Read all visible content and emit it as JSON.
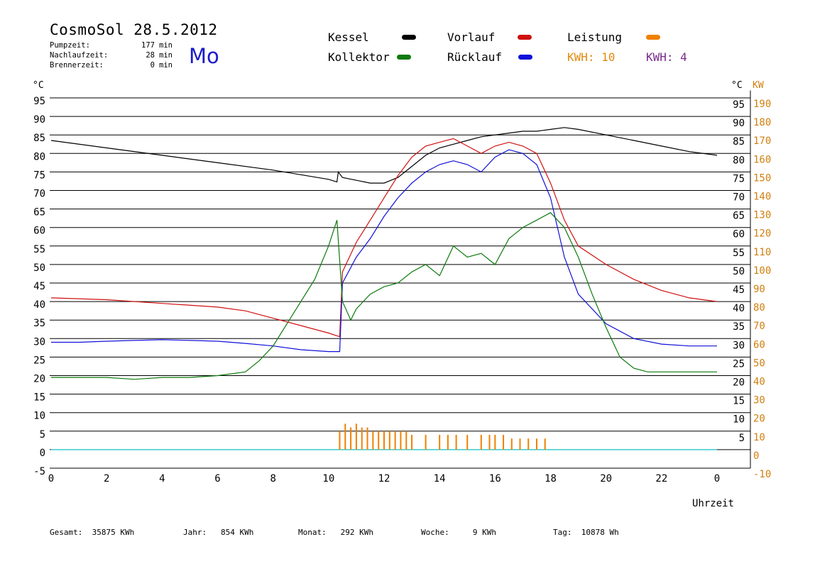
{
  "header": {
    "title": "CosmoSol 28.5.2012",
    "weekday": "Mo",
    "stats": [
      {
        "label": "Pumpzeit:",
        "value": "177",
        "unit": "min"
      },
      {
        "label": "Nachlaufzeit:",
        "value": "28",
        "unit": "min"
      },
      {
        "label": "Brennerzeit:",
        "value": "0",
        "unit": "min"
      }
    ]
  },
  "legend": {
    "kessel": "Kessel",
    "kollektor": "Kollektor",
    "vorlauf": "Vorlauf",
    "ruecklauf": "Rücklauf",
    "leistung": "Leistung",
    "kwh_left": "KWH: 10",
    "kwh_right": "KWH: 4"
  },
  "colors": {
    "kessel": "#000000",
    "kollektor": "#0d7a0d",
    "vorlauf": "#d01010",
    "ruecklauf": "#1010d8",
    "leistung": "#f08000",
    "kwh_left": "#e08a10",
    "kwh_right": "#7a2a8a",
    "baseline": "#40d0d0",
    "kw_axis": "#d08010"
  },
  "footer": {
    "gesamt": "Gesamt:  35875 KWh",
    "jahr": "Jahr:   854 KWh",
    "monat": "Monat:   292 KWh",
    "woche": "Woche:     9 KWh",
    "tag": "Tag:  10878 Wh"
  },
  "chart_data": {
    "type": "line",
    "title": "CosmoSol 28.5.2012",
    "xlabel": "Uhrzeit",
    "ylabel_left": "°C",
    "ylabel_right_1": "°C",
    "ylabel_right_2": "KW",
    "xlim": [
      0,
      24
    ],
    "ylim": [
      -5,
      97
    ],
    "grid": true,
    "x_ticks": [
      "0",
      "2",
      "4",
      "6",
      "8",
      "10",
      "12",
      "14",
      "16",
      "18",
      "20",
      "22",
      "0"
    ],
    "y_ticks_left": [
      "95",
      "90",
      "85",
      "80",
      "75",
      "70",
      "65",
      "60",
      "55",
      "50",
      "45",
      "40",
      "35",
      "30",
      "25",
      "20",
      "15",
      "10",
      "5",
      "0",
      "-5"
    ],
    "y_ticks_right": [
      "95",
      "90",
      "85",
      "80",
      "75",
      "70",
      "65",
      "60",
      "55",
      "50",
      "45",
      "40",
      "35",
      "30",
      "25",
      "20",
      "15",
      "10",
      "5"
    ],
    "y_ticks_kw": [
      "190",
      "180",
      "170",
      "160",
      "150",
      "140",
      "130",
      "120",
      "110",
      "100",
      "90",
      "80",
      "70",
      "60",
      "50",
      "40",
      "30",
      "20",
      "10",
      "0",
      "-10"
    ],
    "series": [
      {
        "name": "Kessel",
        "x": [
          0,
          2,
          4,
          6,
          8,
          10,
          10.3,
          10.35,
          10.5,
          11.5,
          12,
          12.5,
          13,
          13.5,
          14,
          14.5,
          15,
          15.5,
          16,
          16.5,
          17,
          17.5,
          18,
          18.5,
          19,
          20,
          21,
          22,
          23,
          24
        ],
        "values": [
          83.5,
          81.5,
          79.5,
          77.5,
          75.5,
          73,
          72.3,
          75,
          73.5,
          72,
          72,
          73.5,
          76.5,
          79.5,
          81.5,
          82.5,
          83.5,
          84.5,
          85,
          85.5,
          86,
          86,
          86.5,
          87,
          86.5,
          85,
          83.5,
          82,
          80.5,
          79.5
        ]
      },
      {
        "name": "Vorlauf",
        "x": [
          0,
          2,
          4,
          6,
          7,
          8,
          9,
          10,
          10.4,
          10.5,
          11,
          11.5,
          12,
          12.5,
          13,
          13.5,
          14,
          14.5,
          15,
          15.5,
          16,
          16.5,
          17,
          17.5,
          18,
          18.5,
          19,
          20,
          21,
          22,
          23,
          24
        ],
        "values": [
          41,
          40.5,
          39.5,
          38.5,
          37.5,
          35.5,
          33.5,
          31.5,
          30.5,
          48,
          56,
          62,
          68,
          74,
          79,
          82,
          83,
          84,
          82,
          80,
          82,
          83,
          82,
          80,
          72,
          62,
          55,
          50,
          46,
          43,
          41,
          40
        ]
      },
      {
        "name": "Rücklauf",
        "x": [
          0,
          1,
          2,
          3,
          4,
          5,
          6,
          7,
          8,
          9,
          10,
          10.4,
          10.5,
          11,
          11.5,
          12,
          12.5,
          13,
          13.5,
          14,
          14.5,
          15,
          15.5,
          16,
          16.5,
          17,
          17.5,
          18,
          18.5,
          19,
          20,
          21,
          22,
          23,
          24
        ],
        "values": [
          29,
          29,
          29.3,
          29.5,
          29.7,
          29.5,
          29.3,
          28.7,
          28,
          27,
          26.5,
          26.5,
          45,
          52,
          57,
          63,
          68,
          72,
          75,
          77,
          78,
          77,
          75,
          79,
          81,
          80,
          77,
          68,
          52,
          42,
          34,
          30,
          28.5,
          28,
          28
        ]
      },
      {
        "name": "Kollektor",
        "x": [
          0,
          1,
          2,
          3,
          4,
          5,
          6,
          7,
          7.5,
          8,
          8.5,
          9,
          9.5,
          10,
          10.3,
          10.5,
          10.8,
          11,
          11.5,
          12,
          12.5,
          13,
          13.5,
          14,
          14.5,
          15,
          15.5,
          16,
          16.5,
          17,
          17.5,
          18,
          18.5,
          19,
          19.5,
          20,
          20.5,
          21,
          21.5,
          22,
          23,
          24
        ],
        "values": [
          19.5,
          19.5,
          19.5,
          19,
          19.5,
          19.5,
          20,
          21,
          24,
          28,
          34,
          40,
          46,
          55,
          62,
          40,
          35,
          38,
          42,
          44,
          45,
          48,
          50,
          47,
          55,
          52,
          53,
          50,
          57,
          60,
          62,
          64,
          60,
          52,
          42,
          33,
          25,
          22,
          21,
          21,
          21,
          21
        ]
      }
    ],
    "bars_leistung": {
      "name": "Leistung",
      "x": [
        10.4,
        10.6,
        10.8,
        11.0,
        11.2,
        11.4,
        11.6,
        11.8,
        12.0,
        12.2,
        12.4,
        12.6,
        12.8,
        13.0,
        13.5,
        14.0,
        14.3,
        14.6,
        15.0,
        15.5,
        15.8,
        16.0,
        16.3,
        16.6,
        16.9,
        17.2,
        17.5,
        17.8
      ],
      "values": [
        5,
        7,
        6,
        7,
        6,
        6,
        5,
        5,
        5,
        5,
        5,
        5,
        5,
        4,
        4,
        4,
        4,
        4,
        4,
        4,
        4,
        4,
        4,
        3,
        3,
        3,
        3,
        3
      ]
    }
  }
}
